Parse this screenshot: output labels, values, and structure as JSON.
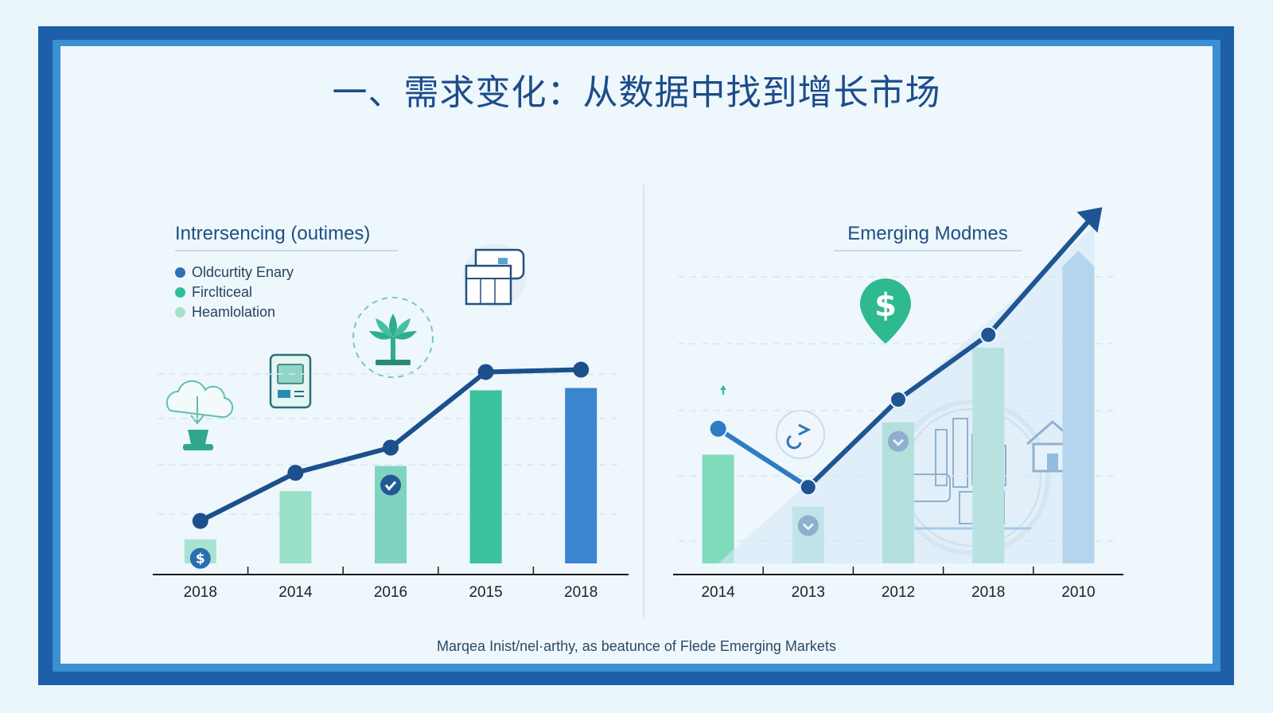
{
  "title": "一、需求变化：从数据中找到增长市场",
  "footer": "Marqea Inist/nel·arthy, as beatunce of Flede Emerging Markets",
  "colors": {
    "frame_dark": "#1d5fa8",
    "line": "#1c4f8c",
    "teal": "#3cc29c",
    "mint": "#96dfc6",
    "blue": "#3b84d0"
  },
  "chart_data": [
    {
      "type": "bar",
      "title": "Intrersencing (outimes)",
      "legend": [
        {
          "label": "Oldcurtity Enary",
          "color": "#2e6fb5"
        },
        {
          "label": "Firclticeal",
          "color": "#2fbf9a"
        },
        {
          "label": "Heamlolation",
          "color": "#a5e2cc"
        }
      ],
      "categories": [
        "2018",
        "2014",
        "2016",
        "2015",
        "2018"
      ],
      "values": [
        14,
        35,
        46,
        79,
        80
      ],
      "bar_colors": [
        "#a8e3d2",
        "#9be0c8",
        "#7fd4c0",
        "#3cc29c",
        "#3b84d0"
      ],
      "line_values": [
        22,
        43,
        54,
        87,
        88
      ],
      "ylim": [
        0,
        100
      ],
      "icons": [
        "dollar-badge-icon",
        "",
        "check-badge-icon",
        "",
        ""
      ],
      "decorations": [
        "cloud-upload-icon",
        "document-icon",
        "plant-icon",
        "presentation-board-icon"
      ]
    },
    {
      "type": "bar",
      "title": "Emerging Modmes",
      "categories": [
        "2014",
        "2013",
        "2012",
        "2018",
        "2010"
      ],
      "values": [
        36,
        20,
        46,
        69,
        97
      ],
      "bar_colors": [
        "#7fdbb9",
        "#a6ded8",
        "#7fd4b6",
        "#8ad9bf",
        "#82b8e0"
      ],
      "line_values": [
        44,
        26,
        53,
        73,
        105
      ],
      "ylim": [
        0,
        110
      ],
      "icons": [
        "",
        "chevron-down-badge-icon",
        "chevron-down-badge-icon",
        "",
        ""
      ],
      "decorations": [
        "dollar-pin-icon",
        "city-illustration-icon",
        "house-icon"
      ]
    }
  ]
}
